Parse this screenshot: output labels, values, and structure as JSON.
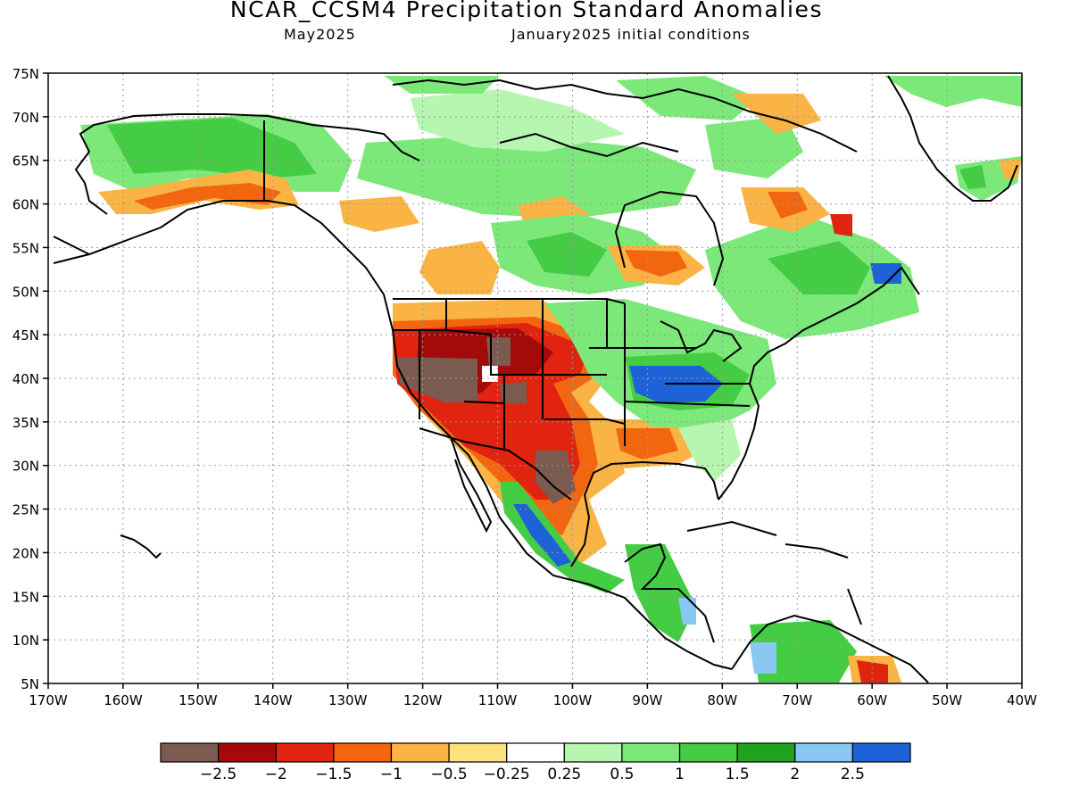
{
  "title": "NCAR_CCSM4 Precipitation Standard Anomalies",
  "subtitle_left": "May2025",
  "subtitle_right": "January2025 initial conditions",
  "map": {
    "lon_labels": [
      "170W",
      "160W",
      "150W",
      "140W",
      "130W",
      "120W",
      "110W",
      "100W",
      "90W",
      "80W",
      "70W",
      "60W",
      "50W",
      "40W"
    ],
    "lat_labels": [
      "75N",
      "70N",
      "65N",
      "60N",
      "55N",
      "50N",
      "45N",
      "40N",
      "35N",
      "30N",
      "25N",
      "20N",
      "15N",
      "10N",
      "5N"
    ]
  },
  "legend": {
    "colors": [
      "#7b5a4f",
      "#a40a0a",
      "#e0240f",
      "#f26610",
      "#f9b445",
      "#fde27e",
      "#ffffff",
      "#b6f6b0",
      "#7ce87a",
      "#44cc44",
      "#1fa31e",
      "#8ac8f4",
      "#1d62d6"
    ],
    "labels": [
      "-2.5",
      "-2",
      "-1.5",
      "-1",
      "-0.5",
      "-0.25",
      "0.25",
      "0.5",
      "1",
      "1.5",
      "2",
      "2.5"
    ]
  }
}
